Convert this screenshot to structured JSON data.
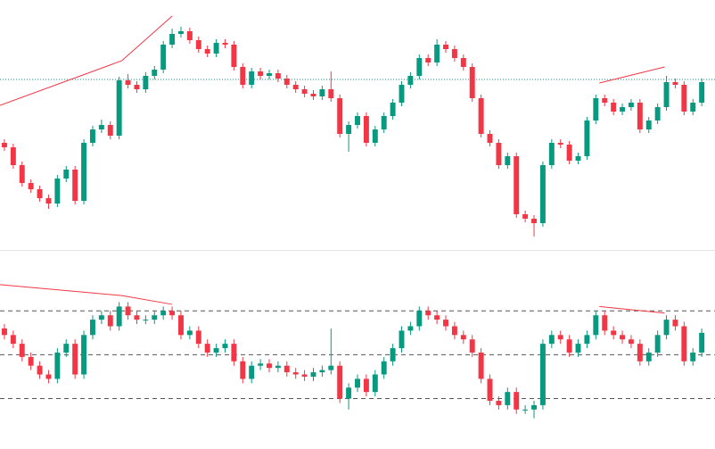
{
  "chart_data": [
    {
      "type": "candlestick",
      "up_color": "#089981",
      "down_color": "#f23645",
      "line_color": "#f23645",
      "price_line_color": "#089981",
      "xlim": [
        -0.5,
        80.5
      ],
      "ylim": [
        0,
        280
      ],
      "price_line": 191,
      "trendlines": [
        {
          "x": [
            -0.5,
            13.3,
            19
          ],
          "y": [
            162,
            212,
            262
          ]
        },
        {
          "x": [
            67.4,
            74.8
          ],
          "y": [
            187,
            205
          ]
        }
      ],
      "candles": [
        [
          120,
          124,
          111,
          115
        ],
        [
          115,
          119,
          91,
          95
        ],
        [
          95,
          99,
          71,
          75
        ],
        [
          75,
          79,
          64,
          68
        ],
        [
          68,
          72,
          54,
          58
        ],
        [
          58,
          62,
          46,
          52
        ],
        [
          52,
          84,
          48,
          80
        ],
        [
          80,
          94,
          76,
          90
        ],
        [
          90,
          94,
          51,
          55
        ],
        [
          55,
          124,
          51,
          120
        ],
        [
          120,
          139,
          116,
          135
        ],
        [
          135,
          146,
          131,
          140
        ],
        [
          140,
          144,
          124,
          128
        ],
        [
          128,
          194,
          124,
          190
        ],
        [
          190,
          197,
          181,
          185
        ],
        [
          185,
          189,
          176,
          180
        ],
        [
          180,
          199,
          176,
          195
        ],
        [
          195,
          206,
          191,
          202
        ],
        [
          202,
          234,
          198,
          230
        ],
        [
          230,
          248,
          226,
          242
        ],
        [
          242,
          250,
          238,
          245
        ],
        [
          245,
          249,
          231,
          235
        ],
        [
          235,
          239,
          221,
          225
        ],
        [
          225,
          229,
          216,
          220
        ],
        [
          220,
          236,
          216,
          232
        ],
        [
          232,
          236,
          226,
          230
        ],
        [
          230,
          234,
          201,
          205
        ],
        [
          205,
          209,
          181,
          185
        ],
        [
          185,
          204,
          181,
          200
        ],
        [
          200,
          204,
          191,
          195
        ],
        [
          195,
          202,
          191,
          198
        ],
        [
          198,
          202,
          188,
          192
        ],
        [
          192,
          196,
          181,
          185
        ],
        [
          185,
          189,
          176,
          180
        ],
        [
          180,
          184,
          171,
          175
        ],
        [
          175,
          179,
          168,
          172
        ],
        [
          172,
          184,
          168,
          180
        ],
        [
          180,
          200,
          166,
          170
        ],
        [
          170,
          174,
          126,
          130
        ],
        [
          130,
          144,
          110,
          140
        ],
        [
          140,
          154,
          136,
          150
        ],
        [
          150,
          154,
          116,
          120
        ],
        [
          120,
          139,
          116,
          135
        ],
        [
          135,
          154,
          131,
          150
        ],
        [
          150,
          169,
          146,
          165
        ],
        [
          165,
          189,
          161,
          185
        ],
        [
          185,
          199,
          181,
          195
        ],
        [
          195,
          219,
          191,
          215
        ],
        [
          215,
          219,
          206,
          210
        ],
        [
          210,
          236,
          206,
          230
        ],
        [
          230,
          234,
          221,
          225
        ],
        [
          225,
          229,
          211,
          215
        ],
        [
          215,
          219,
          201,
          205
        ],
        [
          205,
          209,
          166,
          170
        ],
        [
          170,
          174,
          126,
          130
        ],
        [
          130,
          134,
          116,
          120
        ],
        [
          120,
          124,
          91,
          95
        ],
        [
          95,
          109,
          91,
          105
        ],
        [
          105,
          109,
          36,
          40
        ],
        [
          40,
          44,
          31,
          35
        ],
        [
          35,
          39,
          15,
          30
        ],
        [
          30,
          99,
          26,
          95
        ],
        [
          95,
          124,
          91,
          120
        ],
        [
          120,
          124,
          114,
          118
        ],
        [
          118,
          122,
          96,
          100
        ],
        [
          100,
          109,
          96,
          105
        ],
        [
          105,
          149,
          101,
          145
        ],
        [
          145,
          174,
          141,
          170
        ],
        [
          170,
          174,
          161,
          165
        ],
        [
          165,
          169,
          151,
          155
        ],
        [
          155,
          164,
          151,
          160
        ],
        [
          160,
          169,
          156,
          165
        ],
        [
          165,
          169,
          131,
          135
        ],
        [
          135,
          149,
          131,
          145
        ],
        [
          145,
          164,
          141,
          160
        ],
        [
          160,
          195,
          156,
          188
        ],
        [
          188,
          192,
          181,
          185
        ],
        [
          185,
          189,
          151,
          155
        ],
        [
          155,
          169,
          151,
          165
        ],
        [
          165,
          192,
          161,
          188
        ]
      ]
    },
    {
      "type": "candlestick",
      "up_color": "#089981",
      "down_color": "#f23645",
      "line_color": "#f23645",
      "level_color": "#555555",
      "xlim": [
        -0.5,
        80.5
      ],
      "ylim": [
        7,
        97
      ],
      "levels": [
        70,
        50,
        30
      ],
      "trendlines": [
        {
          "x": [
            -0.5,
            13.3,
            19
          ],
          "y": [
            82,
            77,
            73
          ]
        },
        {
          "x": [
            67.4,
            74.8
          ],
          "y": [
            72,
            69
          ]
        }
      ],
      "candles": [
        [
          62,
          64,
          57,
          59
        ],
        [
          59,
          61,
          53,
          55
        ],
        [
          55,
          57,
          47,
          49
        ],
        [
          49,
          51,
          43,
          45
        ],
        [
          45,
          47,
          39,
          41
        ],
        [
          41,
          43,
          37,
          39
        ],
        [
          39,
          53,
          37,
          51
        ],
        [
          51,
          57,
          49,
          55
        ],
        [
          55,
          57,
          39,
          41
        ],
        [
          41,
          61,
          39,
          59
        ],
        [
          59,
          68,
          57,
          66
        ],
        [
          66,
          70,
          64,
          68
        ],
        [
          68,
          70,
          61,
          63
        ],
        [
          63,
          74,
          61,
          72
        ],
        [
          72,
          74,
          66,
          68
        ],
        [
          68,
          70,
          64,
          66
        ],
        [
          66,
          68,
          64,
          66
        ],
        [
          66,
          70,
          64,
          68
        ],
        [
          68,
          72,
          66,
          70
        ],
        [
          70,
          72,
          66,
          68
        ],
        [
          68,
          70,
          57,
          59
        ],
        [
          59,
          63,
          57,
          61
        ],
        [
          61,
          63,
          53,
          55
        ],
        [
          55,
          57,
          49,
          51
        ],
        [
          51,
          55,
          49,
          53
        ],
        [
          53,
          57,
          51,
          55
        ],
        [
          55,
          57,
          45,
          47
        ],
        [
          47,
          49,
          37,
          39
        ],
        [
          39,
          47,
          37,
          45
        ],
        [
          45,
          48,
          43,
          46
        ],
        [
          46,
          48,
          42,
          44
        ],
        [
          44,
          47,
          42,
          45
        ],
        [
          45,
          47,
          40,
          42
        ],
        [
          42,
          44,
          39,
          41
        ],
        [
          41,
          43,
          38,
          40
        ],
        [
          40,
          44,
          38,
          42
        ],
        [
          42,
          45,
          40,
          43
        ],
        [
          43,
          62,
          41,
          45
        ],
        [
          45,
          47,
          28,
          30
        ],
        [
          30,
          37,
          25,
          35
        ],
        [
          35,
          41,
          33,
          39
        ],
        [
          39,
          41,
          31,
          33
        ],
        [
          33,
          43,
          31,
          41
        ],
        [
          41,
          49,
          39,
          47
        ],
        [
          47,
          55,
          45,
          53
        ],
        [
          53,
          63,
          51,
          61
        ],
        [
          61,
          65,
          59,
          63
        ],
        [
          63,
          72,
          61,
          70
        ],
        [
          70,
          72,
          66,
          68
        ],
        [
          68,
          70,
          64,
          66
        ],
        [
          66,
          68,
          61,
          63
        ],
        [
          63,
          65,
          57,
          59
        ],
        [
          59,
          61,
          55,
          57
        ],
        [
          57,
          59,
          49,
          51
        ],
        [
          51,
          53,
          37,
          39
        ],
        [
          39,
          41,
          27,
          29
        ],
        [
          29,
          31,
          25,
          27
        ],
        [
          27,
          35,
          25,
          33
        ],
        [
          33,
          35,
          23,
          25
        ],
        [
          25,
          27,
          23,
          25
        ],
        [
          25,
          29,
          21,
          27
        ],
        [
          27,
          57,
          25,
          55
        ],
        [
          55,
          61,
          53,
          59
        ],
        [
          59,
          61,
          55,
          57
        ],
        [
          57,
          59,
          49,
          51
        ],
        [
          51,
          57,
          49,
          55
        ],
        [
          55,
          61,
          53,
          59
        ],
        [
          59,
          70,
          57,
          68
        ],
        [
          68,
          70,
          59,
          61
        ],
        [
          61,
          63,
          57,
          59
        ],
        [
          59,
          61,
          55,
          57
        ],
        [
          57,
          59,
          53,
          55
        ],
        [
          55,
          57,
          45,
          47
        ],
        [
          47,
          53,
          45,
          51
        ],
        [
          51,
          61,
          49,
          59
        ],
        [
          59,
          68,
          57,
          66
        ],
        [
          66,
          68,
          61,
          63
        ],
        [
          63,
          65,
          45,
          47
        ],
        [
          47,
          53,
          45,
          51
        ],
        [
          51,
          62,
          49,
          60
        ]
      ]
    }
  ]
}
